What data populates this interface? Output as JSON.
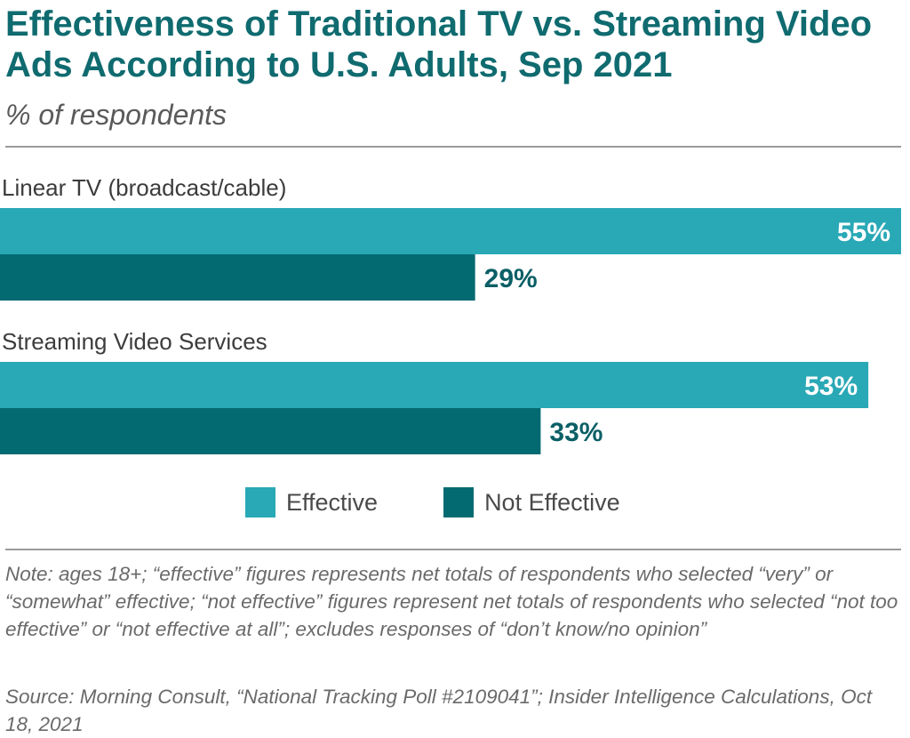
{
  "header": {
    "title": "Effectiveness of Traditional TV vs. Streaming Video Ads According to U.S. Adults, Sep 2021",
    "subtitle": "% of respondents"
  },
  "chart_data": {
    "type": "bar",
    "orientation": "horizontal",
    "categories": [
      "Linear TV (broadcast/cable)",
      "Streaming Video Services"
    ],
    "series": [
      {
        "name": "Effective",
        "values": [
          55,
          53
        ],
        "labels": [
          "55%",
          "53%"
        ],
        "color": "#29a8b6",
        "label_color": "#ffffff",
        "label_position": "inside"
      },
      {
        "name": "Not Effective",
        "values": [
          29,
          33
        ],
        "labels": [
          "29%",
          "33%"
        ],
        "color": "#046a72",
        "label_color": "#0b5f66",
        "label_position": "outside"
      }
    ],
    "xlim": [
      0,
      55
    ],
    "grid": false,
    "legend_position": "bottom"
  },
  "footer": {
    "note": "Note: ages 18+; “effective” figures represents net totals of respondents who selected “very” or “somewhat” effective; “not effective” figures represent net totals of respondents who selected “not too effective” or “not effective at all”; excludes responses of “don’t know/no opinion”",
    "source": "Source: Morning Consult, “National Tracking Poll #2109041”; Insider Intelligence Calculations, Oct 18, 2021"
  }
}
